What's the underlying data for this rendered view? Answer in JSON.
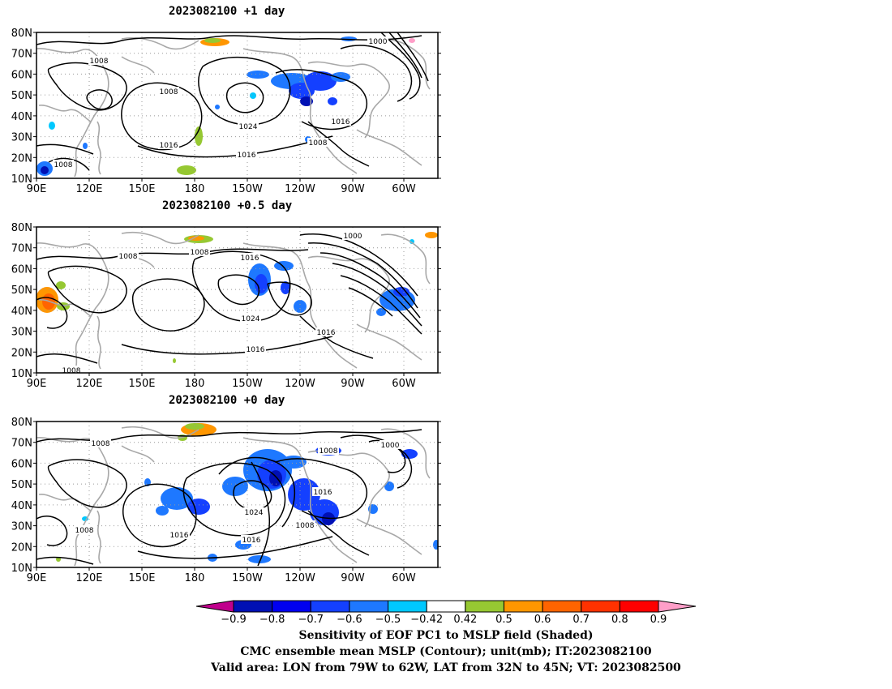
{
  "panels": [
    {
      "title": "2023082100  +1 day",
      "contour_labels": [
        "1008",
        "1008",
        "1024",
        "1016",
        "1016",
        "1008",
        "1016",
        "1008",
        "1000"
      ]
    },
    {
      "title": "2023082100  +0.5 day",
      "contour_labels": [
        "1008",
        "1008",
        "1016",
        "1024",
        "1016",
        "1016",
        "1000",
        "1008"
      ]
    },
    {
      "title": "2023082100  +0 day",
      "contour_labels": [
        "1008",
        "1024",
        "1016",
        "1016",
        "1008",
        "1016",
        "1008",
        "1000",
        "1008"
      ]
    }
  ],
  "lat_labels": [
    "80N",
    "70N",
    "60N",
    "50N",
    "40N",
    "30N",
    "20N",
    "10N"
  ],
  "lon_labels": [
    "90E",
    "120E",
    "150E",
    "180",
    "150W",
    "120W",
    "90W",
    "60W"
  ],
  "colorbar": {
    "colors": [
      "#c0008c",
      "#0010b4",
      "#0000f0",
      "#1440ff",
      "#1e78ff",
      "#00c8ff",
      "#ffffff",
      "#96c832",
      "#ff9600",
      "#ff6400",
      "#ff3200",
      "#ff0000",
      "#ff9ec8"
    ],
    "labels": [
      "−0.9",
      "−0.8",
      "−0.7",
      "−0.6",
      "−0.5",
      "−0.42",
      "0.42",
      "0.5",
      "0.6",
      "0.7",
      "0.8",
      "0.9"
    ]
  },
  "captions": [
    "Sensitivity of EOF PC1 to MSLP field (Shaded)",
    "CMC ensemble mean MSLP (Contour); unit(mb); IT:2023082100",
    "Valid area: LON from 79W to 62W, LAT from 32N to 45N; VT: 2023082500"
  ]
}
